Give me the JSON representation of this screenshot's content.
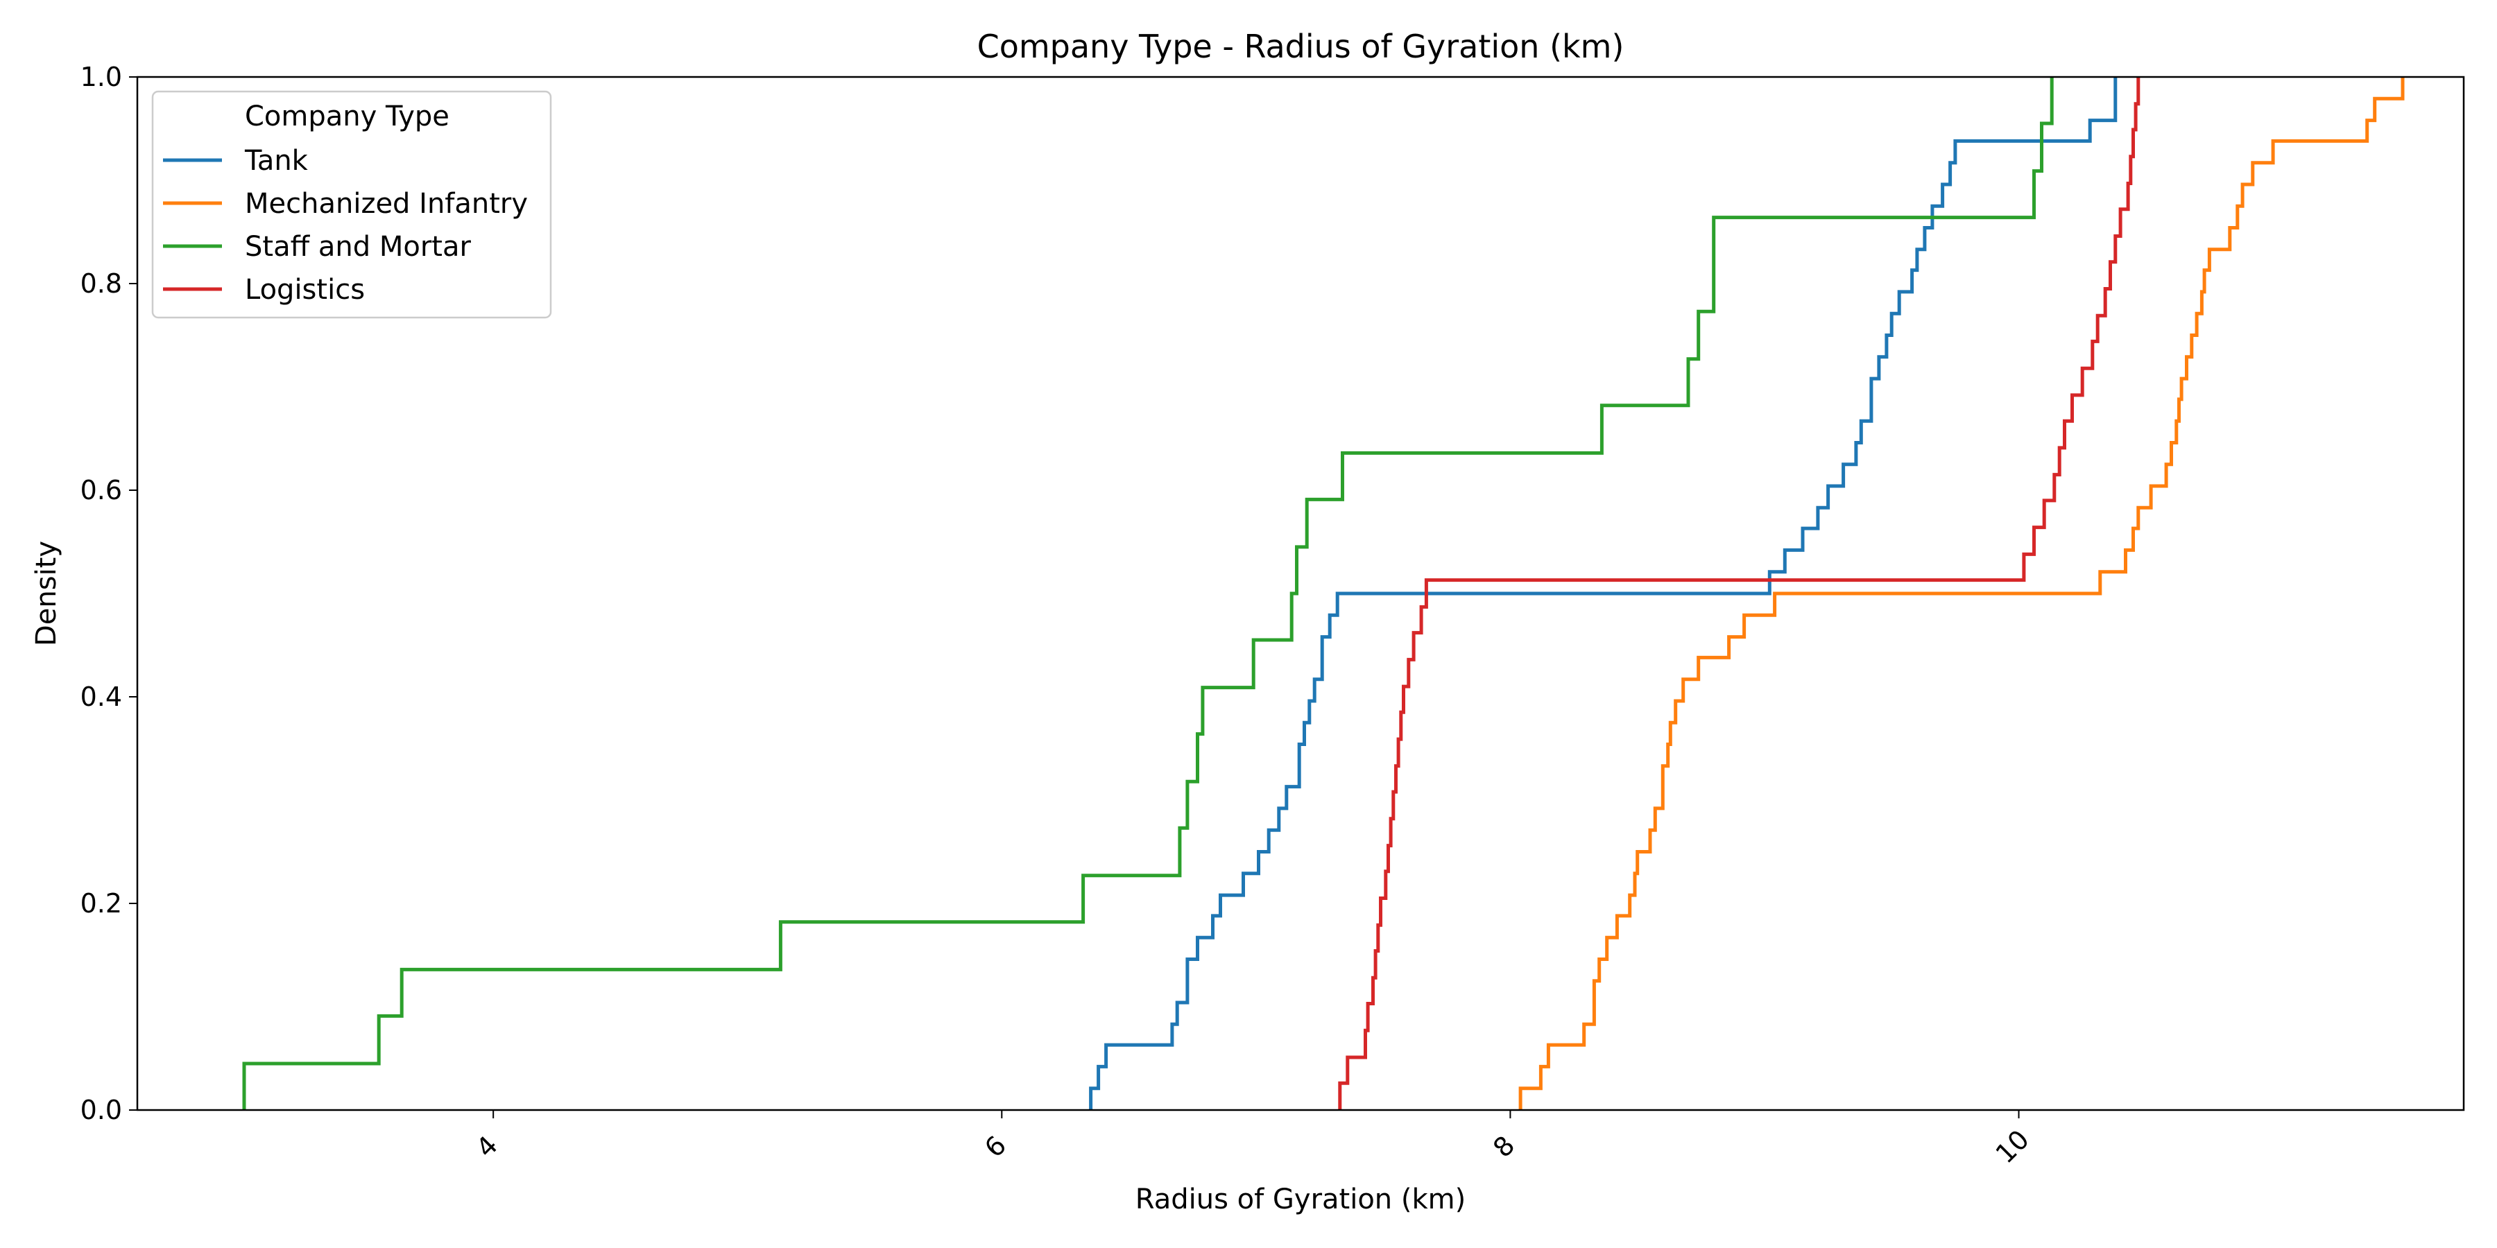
{
  "chart_data": {
    "type": "line",
    "title": "Company Type - Radius of Gyration (km)",
    "xlabel": "Radius of Gyration (km)",
    "ylabel": "Density",
    "xlim": [
      2.6,
      11.75
    ],
    "ylim": [
      0,
      1
    ],
    "x_ticks": [
      4,
      6,
      8,
      10
    ],
    "x_tick_rotation": -45,
    "y_ticks": [
      0.0,
      0.2,
      0.4,
      0.6,
      0.8,
      1.0
    ],
    "grid": false,
    "step": true,
    "legend": {
      "title": "Company Type",
      "placement": "top-left"
    },
    "series": [
      {
        "name": "Tank",
        "color": "#1f77b4",
        "points": [
          [
            6.35,
            0.0
          ],
          [
            6.35,
            0.021
          ],
          [
            6.38,
            0.042
          ],
          [
            6.41,
            0.063
          ],
          [
            6.67,
            0.083
          ],
          [
            6.69,
            0.104
          ],
          [
            6.73,
            0.146
          ],
          [
            6.77,
            0.167
          ],
          [
            6.83,
            0.188
          ],
          [
            6.86,
            0.208
          ],
          [
            6.95,
            0.229
          ],
          [
            7.01,
            0.25
          ],
          [
            7.05,
            0.271
          ],
          [
            7.09,
            0.292
          ],
          [
            7.12,
            0.313
          ],
          [
            7.17,
            0.354
          ],
          [
            7.19,
            0.375
          ],
          [
            7.21,
            0.396
          ],
          [
            7.23,
            0.417
          ],
          [
            7.26,
            0.458
          ],
          [
            7.29,
            0.479
          ],
          [
            7.32,
            0.5
          ],
          [
            9.02,
            0.5
          ],
          [
            9.02,
            0.521
          ],
          [
            9.08,
            0.542
          ],
          [
            9.15,
            0.563
          ],
          [
            9.21,
            0.583
          ],
          [
            9.25,
            0.604
          ],
          [
            9.31,
            0.625
          ],
          [
            9.36,
            0.646
          ],
          [
            9.38,
            0.667
          ],
          [
            9.42,
            0.708
          ],
          [
            9.45,
            0.729
          ],
          [
            9.48,
            0.75
          ],
          [
            9.5,
            0.771
          ],
          [
            9.53,
            0.792
          ],
          [
            9.58,
            0.813
          ],
          [
            9.6,
            0.833
          ],
          [
            9.63,
            0.854
          ],
          [
            9.66,
            0.875
          ],
          [
            9.7,
            0.896
          ],
          [
            9.73,
            0.917
          ],
          [
            9.75,
            0.938
          ],
          [
            10.28,
            0.938
          ],
          [
            10.28,
            0.958
          ],
          [
            10.38,
            0.958
          ],
          [
            10.38,
            1.0
          ]
        ]
      },
      {
        "name": "Mechanized Infantry",
        "color": "#ff7f0e",
        "points": [
          [
            8.04,
            0.0
          ],
          [
            8.04,
            0.021
          ],
          [
            8.12,
            0.042
          ],
          [
            8.15,
            0.063
          ],
          [
            8.29,
            0.083
          ],
          [
            8.33,
            0.125
          ],
          [
            8.35,
            0.146
          ],
          [
            8.38,
            0.167
          ],
          [
            8.42,
            0.188
          ],
          [
            8.47,
            0.208
          ],
          [
            8.49,
            0.229
          ],
          [
            8.5,
            0.25
          ],
          [
            8.55,
            0.271
          ],
          [
            8.57,
            0.292
          ],
          [
            8.6,
            0.333
          ],
          [
            8.62,
            0.354
          ],
          [
            8.63,
            0.375
          ],
          [
            8.65,
            0.396
          ],
          [
            8.68,
            0.417
          ],
          [
            8.74,
            0.438
          ],
          [
            8.86,
            0.458
          ],
          [
            8.92,
            0.479
          ],
          [
            9.04,
            0.5
          ],
          [
            10.32,
            0.5
          ],
          [
            10.32,
            0.521
          ],
          [
            10.42,
            0.542
          ],
          [
            10.45,
            0.563
          ],
          [
            10.47,
            0.583
          ],
          [
            10.52,
            0.604
          ],
          [
            10.58,
            0.625
          ],
          [
            10.6,
            0.646
          ],
          [
            10.62,
            0.667
          ],
          [
            10.63,
            0.688
          ],
          [
            10.64,
            0.708
          ],
          [
            10.66,
            0.729
          ],
          [
            10.68,
            0.75
          ],
          [
            10.7,
            0.771
          ],
          [
            10.72,
            0.792
          ],
          [
            10.73,
            0.813
          ],
          [
            10.75,
            0.833
          ],
          [
            10.83,
            0.854
          ],
          [
            10.86,
            0.875
          ],
          [
            10.88,
            0.896
          ],
          [
            10.92,
            0.917
          ],
          [
            11.0,
            0.938
          ],
          [
            11.37,
            0.938
          ],
          [
            11.37,
            0.958
          ],
          [
            11.4,
            0.979
          ],
          [
            11.51,
            0.979
          ],
          [
            11.51,
            1.0
          ]
        ]
      },
      {
        "name": "Staff and Mortar",
        "color": "#2ca02c",
        "points": [
          [
            3.02,
            0.0
          ],
          [
            3.02,
            0.045
          ],
          [
            3.55,
            0.045
          ],
          [
            3.55,
            0.091
          ],
          [
            3.64,
            0.091
          ],
          [
            3.64,
            0.136
          ],
          [
            5.13,
            0.136
          ],
          [
            5.13,
            0.182
          ],
          [
            6.32,
            0.182
          ],
          [
            6.32,
            0.227
          ],
          [
            6.7,
            0.227
          ],
          [
            6.7,
            0.273
          ],
          [
            6.73,
            0.318
          ],
          [
            6.77,
            0.364
          ],
          [
            6.79,
            0.409
          ],
          [
            6.99,
            0.409
          ],
          [
            6.99,
            0.455
          ],
          [
            7.14,
            0.455
          ],
          [
            7.14,
            0.5
          ],
          [
            7.16,
            0.545
          ],
          [
            7.2,
            0.591
          ],
          [
            7.34,
            0.591
          ],
          [
            7.34,
            0.636
          ],
          [
            8.36,
            0.636
          ],
          [
            8.36,
            0.682
          ],
          [
            8.7,
            0.682
          ],
          [
            8.7,
            0.727
          ],
          [
            8.74,
            0.773
          ],
          [
            8.8,
            0.773
          ],
          [
            8.8,
            0.864
          ],
          [
            10.06,
            0.864
          ],
          [
            10.06,
            0.909
          ],
          [
            10.09,
            0.955
          ],
          [
            10.13,
            0.955
          ],
          [
            10.13,
            1.0
          ]
        ]
      },
      {
        "name": "Logistics",
        "color": "#d62728",
        "points": [
          [
            7.33,
            0.0
          ],
          [
            7.33,
            0.026
          ],
          [
            7.36,
            0.051
          ],
          [
            7.43,
            0.051
          ],
          [
            7.43,
            0.077
          ],
          [
            7.44,
            0.103
          ],
          [
            7.46,
            0.128
          ],
          [
            7.47,
            0.154
          ],
          [
            7.48,
            0.179
          ],
          [
            7.49,
            0.205
          ],
          [
            7.51,
            0.231
          ],
          [
            7.52,
            0.256
          ],
          [
            7.53,
            0.282
          ],
          [
            7.54,
            0.308
          ],
          [
            7.55,
            0.333
          ],
          [
            7.56,
            0.359
          ],
          [
            7.57,
            0.385
          ],
          [
            7.58,
            0.41
          ],
          [
            7.6,
            0.436
          ],
          [
            7.62,
            0.462
          ],
          [
            7.65,
            0.487
          ],
          [
            7.67,
            0.513
          ],
          [
            10.02,
            0.513
          ],
          [
            10.02,
            0.538
          ],
          [
            10.06,
            0.564
          ],
          [
            10.1,
            0.59
          ],
          [
            10.14,
            0.615
          ],
          [
            10.16,
            0.641
          ],
          [
            10.18,
            0.667
          ],
          [
            10.21,
            0.692
          ],
          [
            10.25,
            0.718
          ],
          [
            10.29,
            0.744
          ],
          [
            10.31,
            0.769
          ],
          [
            10.34,
            0.795
          ],
          [
            10.36,
            0.821
          ],
          [
            10.38,
            0.846
          ],
          [
            10.4,
            0.872
          ],
          [
            10.43,
            0.897
          ],
          [
            10.44,
            0.923
          ],
          [
            10.45,
            0.949
          ],
          [
            10.46,
            0.974
          ],
          [
            10.47,
            1.0
          ]
        ]
      }
    ]
  }
}
